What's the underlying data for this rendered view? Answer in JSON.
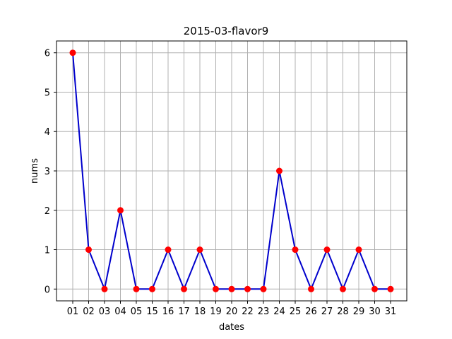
{
  "chart_data": {
    "type": "line",
    "title": "2015-03-flavor9",
    "xlabel": "dates",
    "ylabel": "nums",
    "categories": [
      "01",
      "02",
      "03",
      "04",
      "05",
      "15",
      "16",
      "17",
      "18",
      "19",
      "20",
      "22",
      "23",
      "24",
      "25",
      "26",
      "27",
      "28",
      "29",
      "30",
      "31"
    ],
    "series": [
      {
        "values": [
          6,
          1,
          0,
          2,
          0,
          0,
          1,
          0,
          1,
          0,
          0,
          0,
          0,
          3,
          1,
          0,
          1,
          0,
          1,
          0,
          0
        ],
        "line_color": "#0000cc",
        "marker_color": "#ff0000"
      }
    ],
    "ylim": [
      -0.3,
      6.3
    ],
    "yticks": [
      0,
      1,
      2,
      3,
      4,
      5,
      6
    ],
    "grid": true,
    "grid_color": "#b0b0b0"
  }
}
